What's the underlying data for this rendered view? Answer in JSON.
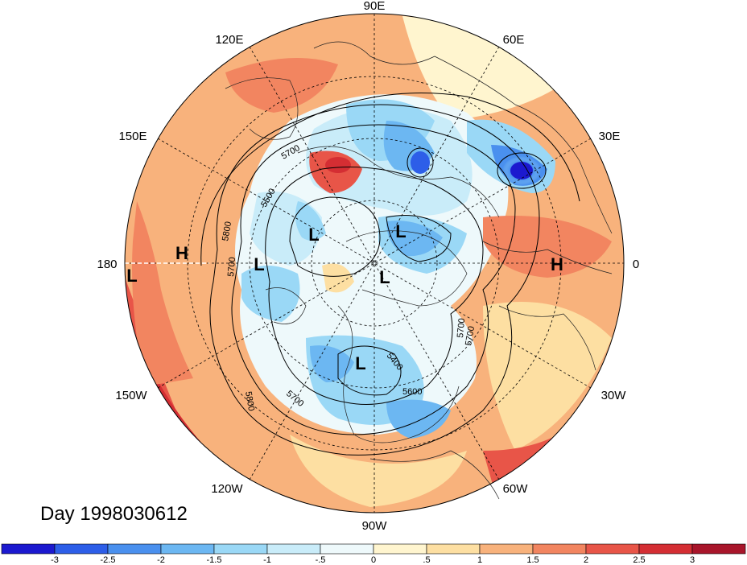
{
  "title": "Day 1998030612",
  "longitude_labels": {
    "e90": "90E",
    "e60": "60E",
    "e120": "120E",
    "e150": "150E",
    "e30": "30E",
    "deg180": "180",
    "deg0": "0",
    "w150": "150W",
    "w30": "30W",
    "w120": "120W",
    "w60": "60W",
    "w90": "90W"
  },
  "pressure_centers": [
    {
      "type": "H",
      "label": "H"
    },
    {
      "type": "H",
      "label": "H"
    },
    {
      "type": "L",
      "label": "L"
    },
    {
      "type": "L",
      "label": "L"
    },
    {
      "type": "L",
      "label": "L"
    },
    {
      "type": "L",
      "label": "L"
    },
    {
      "type": "L",
      "label": "L"
    },
    {
      "type": "L",
      "label": "L"
    }
  ],
  "contour_labels": [
    "5700",
    "5500",
    "5800",
    "5700",
    "5700",
    "5800",
    "5700",
    "5600",
    "5700",
    "5400"
  ],
  "colorbar": {
    "colors": [
      "#1c19cf",
      "#2d5ee8",
      "#4a90ee",
      "#6cb7f2",
      "#9ad8f6",
      "#c9ecf9",
      "#eef9fb",
      "#fff5cf",
      "#fddfa2",
      "#f8b27c",
      "#f28560",
      "#e85548",
      "#d42e33",
      "#a8152a"
    ],
    "ticks": [
      "-3",
      "-2.5",
      "-2",
      "-1.5",
      "-1",
      "-.5",
      "0",
      ".5",
      "1",
      "1.5",
      "2",
      "2.5",
      "3"
    ]
  }
}
